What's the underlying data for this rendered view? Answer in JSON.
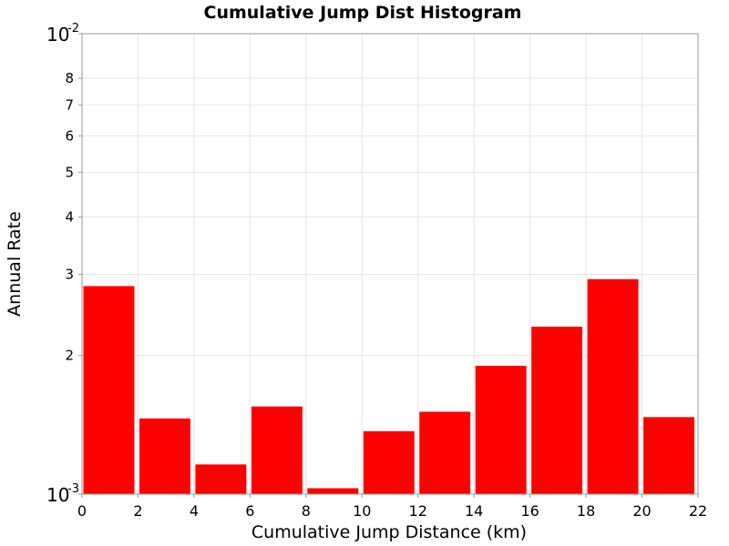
{
  "chart_data": {
    "type": "bar",
    "title": "Cumulative Jump Dist Histogram",
    "xlabel": "Cumulative Jump Distance (km)",
    "ylabel": "Annual Rate",
    "xlim": [
      0,
      22
    ],
    "ylim": [
      0.001,
      0.01
    ],
    "yscale": "log",
    "grid": true,
    "bar_color": "#ff0000",
    "x_ticks": [
      "0",
      "2",
      "4",
      "6",
      "8",
      "10",
      "12",
      "14",
      "16",
      "18",
      "20",
      "22"
    ],
    "y_decade_ticks": [
      {
        "base": "10",
        "exp": "-3",
        "value": 0.001
      },
      {
        "base": "10",
        "exp": "-2",
        "value": 0.01
      }
    ],
    "y_minor_ticks": [
      {
        "label": "2",
        "value": 0.002
      },
      {
        "label": "3",
        "value": 0.003
      },
      {
        "label": "4",
        "value": 0.004
      },
      {
        "label": "5",
        "value": 0.005
      },
      {
        "label": "6",
        "value": 0.006
      },
      {
        "label": "7",
        "value": 0.007
      },
      {
        "label": "8",
        "value": 0.008
      }
    ],
    "bins": [
      {
        "x0": 0,
        "x1": 2,
        "value": 0.00283
      },
      {
        "x0": 2,
        "x1": 4,
        "value": 0.00146
      },
      {
        "x0": 4,
        "x1": 6,
        "value": 0.00116
      },
      {
        "x0": 6,
        "x1": 8,
        "value": 0.00155
      },
      {
        "x0": 8,
        "x1": 10,
        "value": 0.00103
      },
      {
        "x0": 10,
        "x1": 12,
        "value": 0.00137
      },
      {
        "x0": 12,
        "x1": 14,
        "value": 0.00151
      },
      {
        "x0": 14,
        "x1": 16,
        "value": 0.0019
      },
      {
        "x0": 16,
        "x1": 18,
        "value": 0.00231
      },
      {
        "x0": 18,
        "x1": 20,
        "value": 0.00293
      },
      {
        "x0": 20,
        "x1": 22,
        "value": 0.00147
      }
    ]
  }
}
